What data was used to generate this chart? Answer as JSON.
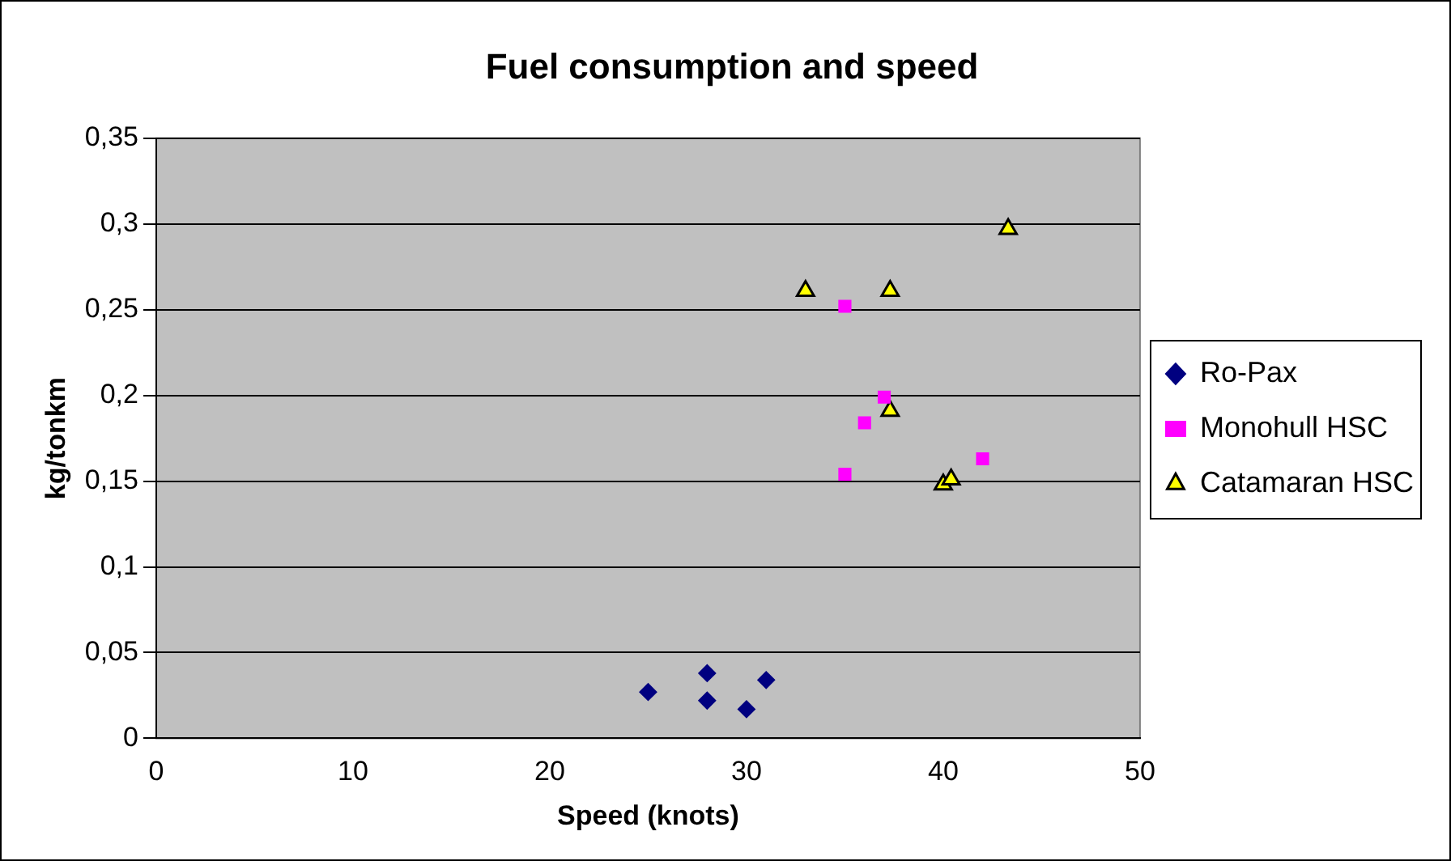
{
  "chart_data": {
    "type": "scatter",
    "title": "Fuel consumption and speed",
    "xlabel": "Speed (knots)",
    "ylabel": "kg/tonkm",
    "series": [
      {
        "name": "Ro-Pax",
        "color": "#000080",
        "marker": "diamond",
        "x": [
          25,
          28,
          28,
          30,
          31
        ],
        "values": [
          0.027,
          0.038,
          0.022,
          0.017,
          0.034
        ]
      },
      {
        "name": "Monohull HSC",
        "color": "#ff00ff",
        "marker": "square",
        "x": [
          35,
          37,
          36,
          35,
          42
        ],
        "values": [
          0.252,
          0.199,
          0.184,
          0.154,
          0.163
        ]
      },
      {
        "name": "Catamaran HSC",
        "color": "#ffff00",
        "marker": "triangle",
        "x": [
          33,
          37.3,
          43.3,
          37.3,
          40,
          40.4
        ],
        "values": [
          0.261,
          0.261,
          0.297,
          0.191,
          0.148,
          0.151
        ]
      }
    ],
    "xlim": [
      0,
      50
    ],
    "xticks": [
      0,
      10,
      20,
      30,
      40,
      50
    ],
    "ylim": [
      0,
      0.35
    ],
    "yticks": [
      {
        "value": 0,
        "label": "0"
      },
      {
        "value": 0.05,
        "label": "0,05"
      },
      {
        "value": 0.1,
        "label": "0,1"
      },
      {
        "value": 0.15,
        "label": "0,15"
      },
      {
        "value": 0.2,
        "label": "0,2"
      },
      {
        "value": 0.25,
        "label": "0,25"
      },
      {
        "value": 0.3,
        "label": "0,3"
      },
      {
        "value": 0.35,
        "label": "0,35"
      }
    ],
    "grid": "y",
    "legend": "right"
  }
}
